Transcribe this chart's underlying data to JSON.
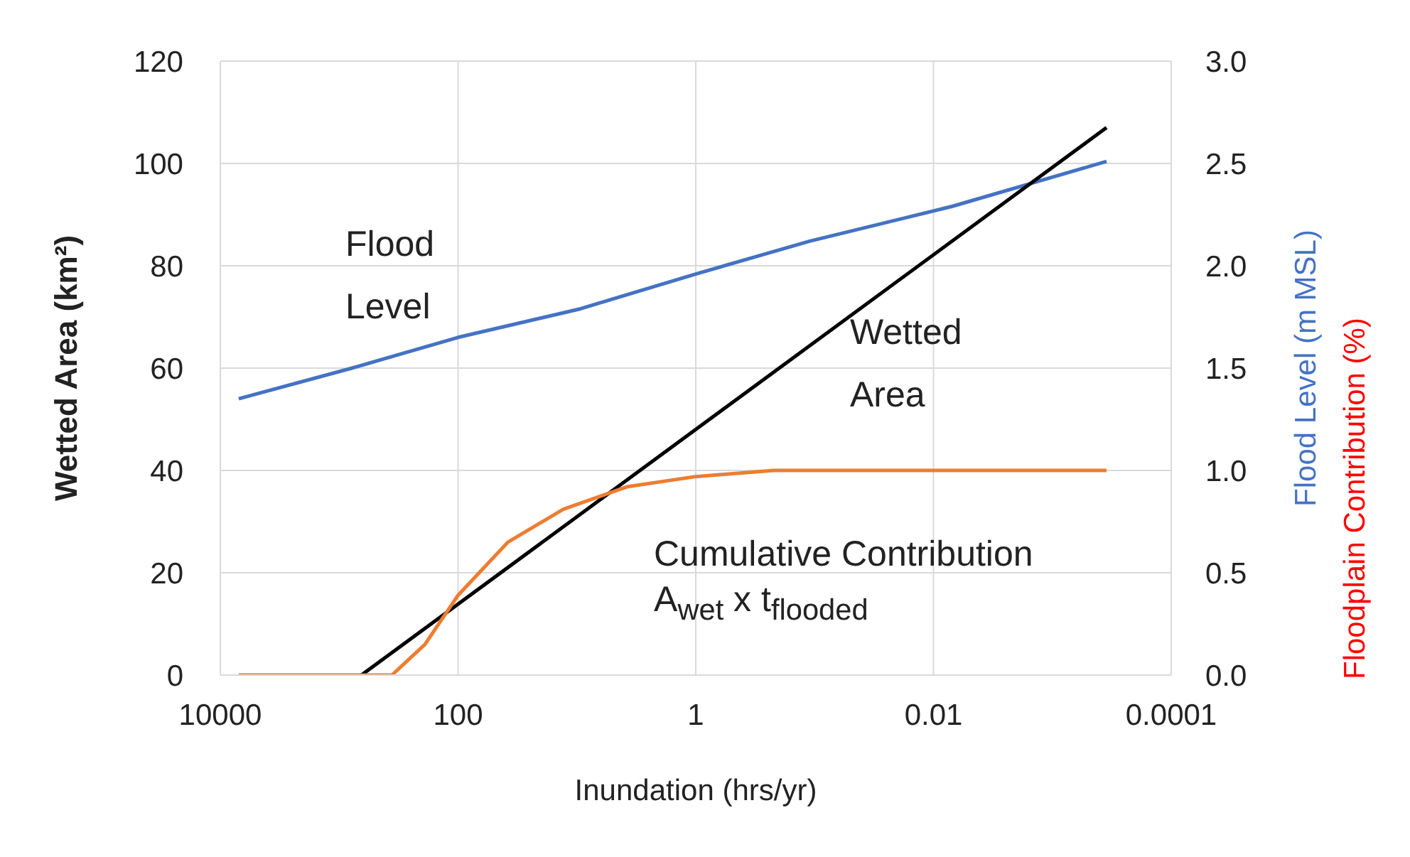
{
  "chart_data": {
    "type": "line",
    "xlabel": "Inundation (hrs/yr)",
    "ylabel": "Wetted Area (km²)",
    "y2label": "Flood Level (m MSL)",
    "log": "x",
    "grid": true,
    "legend": false,
    "marker": "none",
    "xlim": [
      10000,
      0.0001
    ],
    "xticks": [
      10000,
      100,
      1,
      0.01,
      0.0001
    ],
    "ylim": [
      0,
      120
    ],
    "yticks": [
      0,
      20,
      40,
      60,
      80,
      100,
      120
    ],
    "y2lim": [
      0,
      3.0
    ],
    "y2ticks": [
      {
        "value": 0,
        "label": "0.0"
      },
      {
        "value": 0.5,
        "label": "0.5"
      },
      {
        "value": 1,
        "label": "1.0"
      },
      {
        "value": 1.5,
        "label": "1.5"
      },
      {
        "value": 2,
        "label": "2.0"
      },
      {
        "value": 2.5,
        "label": "2.5"
      },
      {
        "value": 3,
        "label": "3.0"
      }
    ],
    "series": [
      {
        "name": "Flood Level",
        "color": "#4472c4",
        "axis": "y2",
        "x": [
          7000,
          780,
          100,
          9.3,
          1,
          0.11,
          0.007,
          0.00035
        ],
        "values": [
          1.35,
          1.5,
          1.65,
          1.79,
          1.96,
          2.12,
          2.29,
          2.51
        ]
      },
      {
        "name": "Wetted Area",
        "color": "#000000",
        "x": [
          650,
          0.00035
        ],
        "values": [
          0,
          107
        ]
      },
      {
        "name": "Cumulative Contribution",
        "color": "#ed7d31",
        "axis": "y2",
        "x": [
          7000,
          360,
          190,
          100,
          38,
          13,
          3.8,
          1,
          0.22,
          0.00035
        ],
        "values": [
          0,
          0,
          0.15,
          0.39,
          0.65,
          0.81,
          0.92,
          0.97,
          1.0,
          1.0
        ]
      }
    ],
    "annotations": [
      "A$_{wet}$ x t$_{flooded}$",
      "Floodplain Contribution (%)"
    ]
  }
}
